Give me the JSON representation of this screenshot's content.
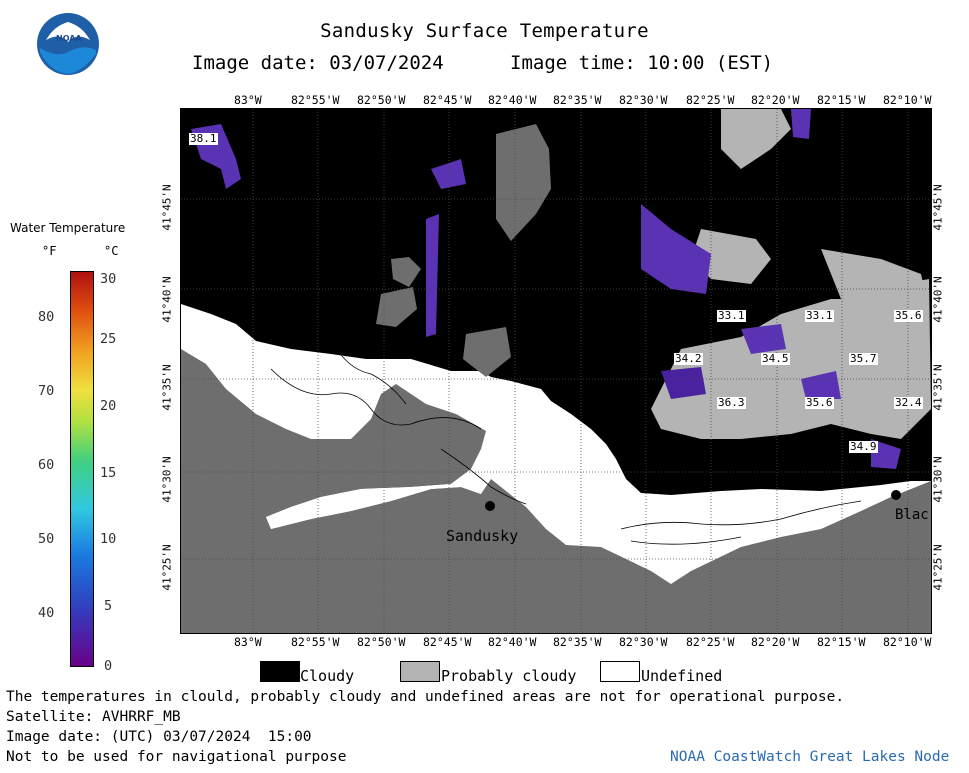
{
  "header": {
    "title": "Sandusky Surface Temperature",
    "image_date": "Image date: 03/07/2024",
    "image_time": "Image time: 10:00 (EST)"
  },
  "logo": {
    "text": "NOAA",
    "icon": "noaa-logo"
  },
  "map": {
    "lon_labels": [
      "83°W",
      "82°55'W",
      "82°50'W",
      "82°45'W",
      "82°40'W",
      "82°35'W",
      "82°30'W",
      "82°25'W",
      "82°20'W",
      "82°15'W",
      "82°10'W"
    ],
    "lat_labels": [
      "41°45'N",
      "41°40'N",
      "41°35'N",
      "41°30'N",
      "41°25'N"
    ],
    "cities": {
      "sandusky": "Sandusky",
      "edge": "Blac"
    },
    "temps": [
      "38.1",
      "33.1",
      "33.1",
      "35.6",
      "34.2",
      "34.5",
      "35.7",
      "36.3",
      "35.6",
      "32.4",
      "34.9"
    ],
    "colors": {
      "cloudy": "#000000",
      "probably_cloudy": "#b4b4b4",
      "undefined": "#ffffff",
      "land": "#6e6e6e",
      "cold_water": "#5a32b4"
    }
  },
  "colorbar": {
    "title": "Water Temperature",
    "unit_f": "°F",
    "unit_c": "°C",
    "f_ticks": [
      "80",
      "70",
      "60",
      "50",
      "40"
    ],
    "c_ticks": [
      "30",
      "25",
      "20",
      "15",
      "10",
      "5",
      "0"
    ]
  },
  "legend": {
    "cloudy": "Cloudy",
    "probably_cloudy": "Probably cloudy",
    "undefined": "Undefined"
  },
  "footer": {
    "disclaimer": "The temperatures in clould, probably cloudy and undefined areas are not for operational purpose.",
    "satellite": "Satellite: AVHRRF_MB",
    "utc_date": "Image date: (UTC) 03/07/2024  15:00",
    "nav": "Not to be used for navigational purpose",
    "credit": "NOAA CoastWatch Great Lakes Node"
  }
}
